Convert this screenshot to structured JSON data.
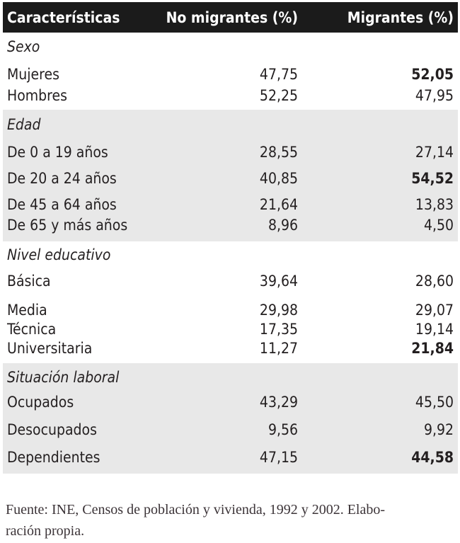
{
  "header": {
    "characteristics": "Características",
    "no_migrants": "No migrantes (%)",
    "migrants": "Migrantes (%)"
  },
  "sections": [
    {
      "title": "Sexo",
      "shaded": false,
      "rows": [
        {
          "label": "Mujeres",
          "no_migrantes": "47,75",
          "migrantes": "52,05",
          "migrantes_bold": true
        },
        {
          "label": "Hombres",
          "no_migrantes": "52,25",
          "migrantes": "47,95",
          "migrantes_bold": false
        }
      ]
    },
    {
      "title": "Edad",
      "shaded": true,
      "rows": [
        {
          "label": "De 0 a 19 años",
          "no_migrantes": "28,55",
          "migrantes": "27,14",
          "migrantes_bold": false
        },
        {
          "label": "De 20 a 24 años",
          "no_migrantes": "40,85",
          "migrantes": "54,52",
          "migrantes_bold": true
        },
        {
          "label": "De 45 a 64 años",
          "no_migrantes": "21,64",
          "migrantes": "13,83",
          "migrantes_bold": false
        },
        {
          "label": "De 65 y más años",
          "no_migrantes": "8,96",
          "migrantes": "4,50",
          "migrantes_bold": false
        }
      ]
    },
    {
      "title": "Nivel educativo",
      "shaded": false,
      "rows": [
        {
          "label": "Básica",
          "no_migrantes": "39,64",
          "migrantes": "28,60",
          "migrantes_bold": false
        },
        {
          "label": "Media",
          "no_migrantes": "29,98",
          "migrantes": "29,07",
          "migrantes_bold": false
        },
        {
          "label": "Técnica",
          "no_migrantes": "17,35",
          "migrantes": "19,14",
          "migrantes_bold": false
        },
        {
          "label": "Universitaria",
          "no_migrantes": "11,27",
          "migrantes": "21,84",
          "migrantes_bold": true
        }
      ]
    },
    {
      "title": "Situación laboral",
      "shaded": true,
      "rows": [
        {
          "label": "Ocupados",
          "no_migrantes": "43,29",
          "migrantes": "45,50",
          "migrantes_bold": false
        },
        {
          "label": "Desocupados",
          "no_migrantes": "9,56",
          "migrantes": "9,92",
          "migrantes_bold": false
        },
        {
          "label": "Dependientes",
          "no_migrantes": "47,15",
          "migrantes": "44,58",
          "migrantes_bold": true
        }
      ]
    }
  ],
  "footer": {
    "line1": "Fuente: INE, Censos de población y vivienda, 1992 y 2002. Elabo-",
    "line2": "ración propia."
  },
  "colors": {
    "header_bg": "#1b1b1b",
    "header_text": "#ffffff",
    "band_bg": "#e8e8e8",
    "text": "#231f20"
  }
}
